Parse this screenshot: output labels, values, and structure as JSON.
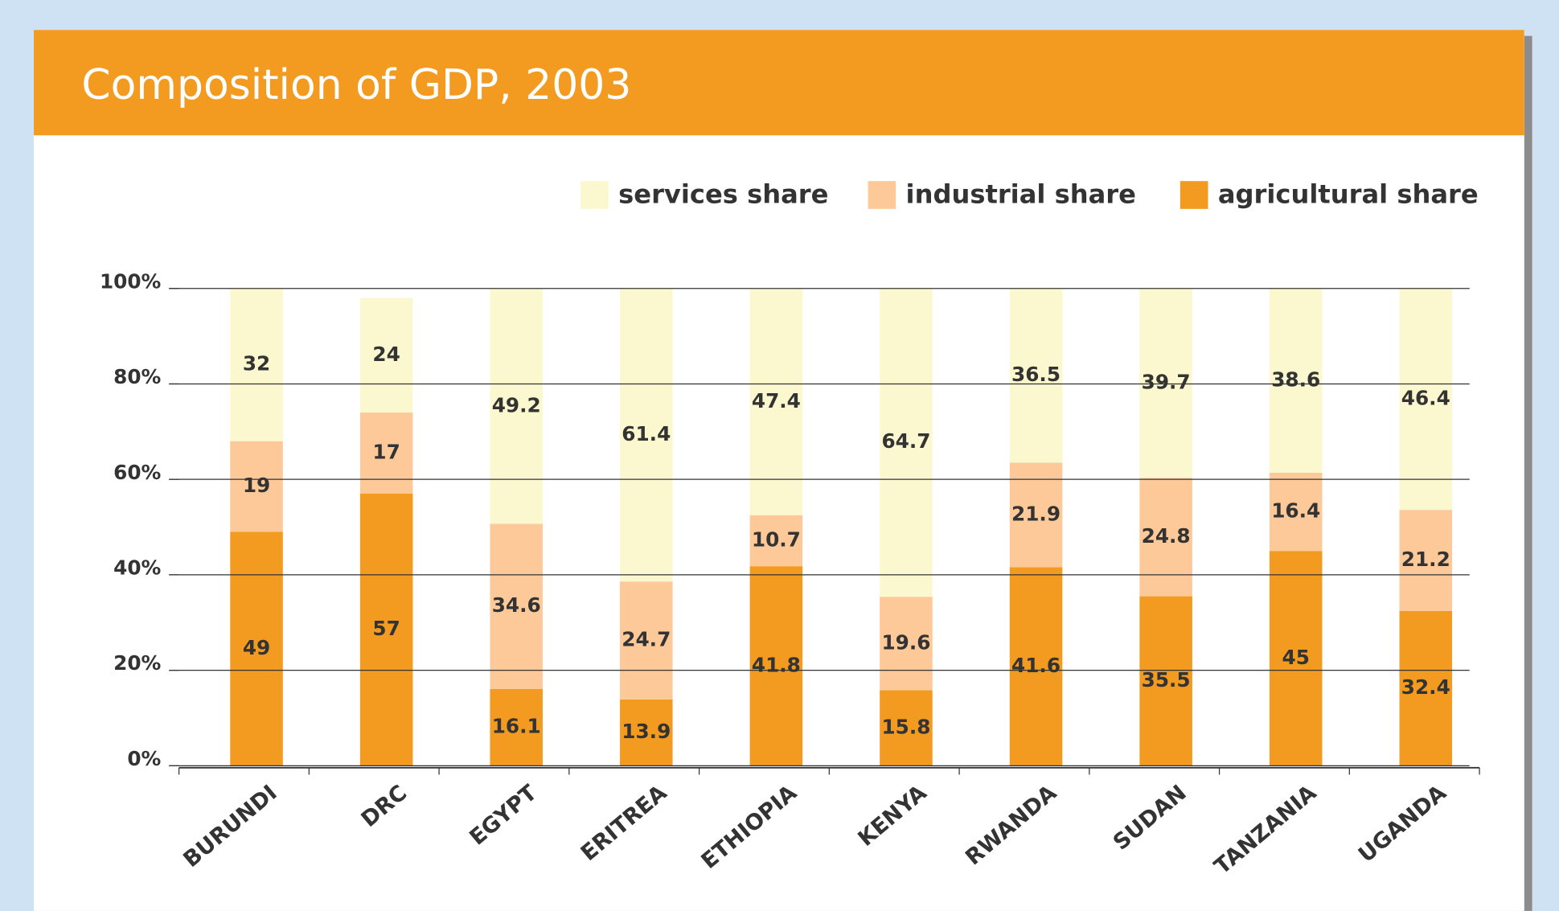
{
  "chart_data": {
    "type": "stacked_bar",
    "title": "Composition of GDP, 2003",
    "categories": [
      "BURUNDI",
      "DRC",
      "EGYPT",
      "ERITREA",
      "ETHIOPIA",
      "KENYA",
      "RWANDA",
      "SUDAN",
      "TANZANIA",
      "UGANDA"
    ],
    "series": [
      {
        "name": "services share",
        "color": "#fbf8cf",
        "values": [
          32,
          24,
          49.2,
          61.4,
          47.4,
          64.7,
          36.5,
          39.7,
          38.6,
          46.4
        ]
      },
      {
        "name": "industrial share",
        "color": "#fdc998",
        "values": [
          19,
          17,
          34.6,
          24.7,
          10.7,
          19.6,
          21.9,
          24.8,
          16.4,
          21.2
        ]
      },
      {
        "name": "agricultural share",
        "color": "#f39a21",
        "values": [
          49,
          57,
          16.1,
          13.9,
          41.8,
          15.8,
          41.6,
          35.5,
          45,
          32.4
        ]
      }
    ],
    "ylim": [
      0,
      100
    ],
    "yticks": [
      {
        "value": 0,
        "label": "0%"
      },
      {
        "value": 20,
        "label": "20%"
      },
      {
        "value": 40,
        "label": "40%"
      },
      {
        "value": 60,
        "label": "60%"
      },
      {
        "value": 80,
        "label": "80%"
      },
      {
        "value": 100,
        "label": "100%"
      }
    ],
    "grid": true,
    "legend": "top-right"
  }
}
